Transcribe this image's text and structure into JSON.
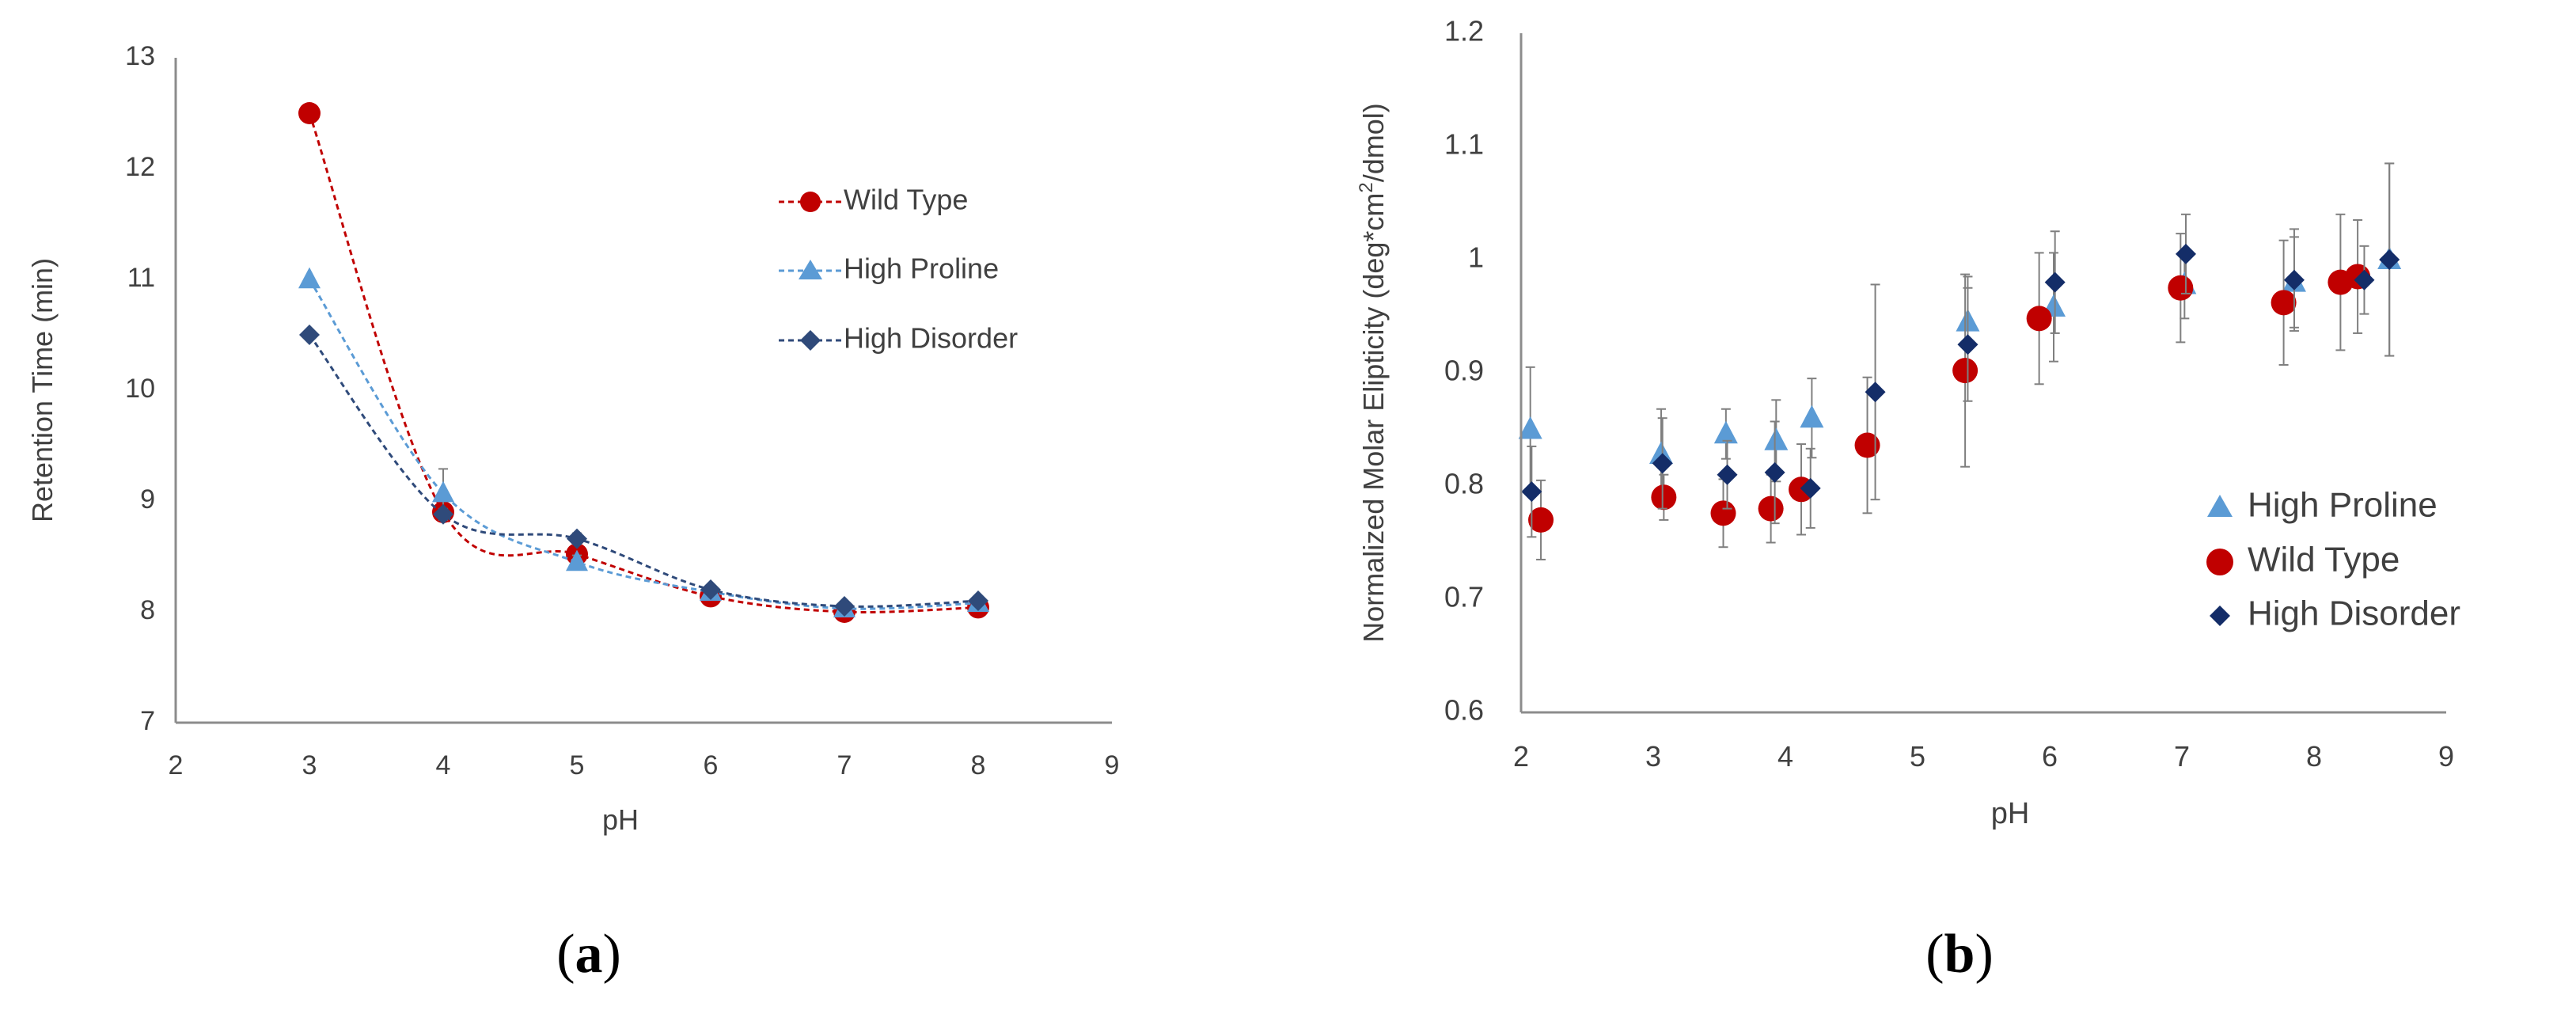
{
  "chart_data": [
    {
      "type": "line",
      "panel_label_open": "(",
      "panel_label": "a",
      "panel_label_close": ")",
      "title": "",
      "xlabel": "pH",
      "ylabel": "Retention Time (min)",
      "xlim": [
        2,
        9
      ],
      "ylim": [
        7,
        13
      ],
      "xticks": [
        2,
        3,
        4,
        5,
        6,
        7,
        8,
        9
      ],
      "yticks": [
        7,
        8,
        9,
        10,
        11,
        12,
        13
      ],
      "grid": false,
      "legend_position": "top-right",
      "series": [
        {
          "name": "Wild Type",
          "color": "#c00000",
          "marker": "circle",
          "x": [
            3,
            4,
            5,
            6,
            7,
            8
          ],
          "y": [
            12.5,
            8.9,
            8.52,
            8.14,
            8.0,
            8.04
          ],
          "err": [
            0,
            0.05,
            0.05,
            0.03,
            0.03,
            0.03
          ]
        },
        {
          "name": "High Proline",
          "color": "#5b9bd5",
          "marker": "triangle",
          "x": [
            3,
            4,
            5,
            6,
            7,
            8
          ],
          "y": [
            11.0,
            9.07,
            8.45,
            8.18,
            8.03,
            8.08
          ],
          "err": [
            0,
            0.22,
            0.06,
            0.04,
            0.03,
            0.03
          ]
        },
        {
          "name": "High Disorder",
          "color": "#2f4a7a",
          "marker": "diamond",
          "x": [
            3,
            4,
            5,
            6,
            7,
            8
          ],
          "y": [
            10.5,
            8.88,
            8.66,
            8.2,
            8.05,
            8.1
          ],
          "err": [
            0,
            0.05,
            0.05,
            0.03,
            0.03,
            0.03
          ]
        }
      ]
    },
    {
      "type": "scatter",
      "panel_label_open": "(",
      "panel_label": "b",
      "panel_label_close": ")",
      "title": "",
      "xlabel": "pH",
      "ylabel_parts": [
        "Normalized Molar Elipticity (deg*cm",
        "2",
        "/dmol)"
      ],
      "xlim": [
        2,
        9
      ],
      "ylim": [
        0.6,
        1.2
      ],
      "xticks": [
        2,
        3,
        4,
        5,
        6,
        7,
        8,
        9
      ],
      "yticks": [
        0.6,
        0.7,
        0.8,
        0.9,
        1.0,
        1.1,
        1.2
      ],
      "grid": false,
      "legend_position": "bottom-right",
      "series": [
        {
          "name": "High Proline",
          "color": "#5b9bd5",
          "marker": "triangle",
          "x": [
            2.07,
            3.06,
            3.55,
            3.93,
            4.2,
            5.38,
            6.03,
            7.02,
            7.85,
            8.57
          ],
          "y": [
            0.85,
            0.828,
            0.846,
            0.84,
            0.86,
            0.945,
            0.958,
            0.978,
            0.98,
            1.0
          ],
          "err": [
            0.055,
            0.04,
            0.022,
            0.036,
            0.035,
            0.04,
            0.048,
            0.03,
            0.04,
            0.085
          ]
        },
        {
          "name": "Wild Type",
          "color": "#c00000",
          "marker": "circle",
          "x": [
            2.15,
            3.08,
            3.53,
            3.89,
            4.12,
            4.62,
            5.36,
            5.92,
            6.99,
            7.77,
            8.2,
            8.33
          ],
          "y": [
            0.77,
            0.79,
            0.776,
            0.78,
            0.797,
            0.836,
            0.902,
            0.948,
            0.975,
            0.962,
            0.98,
            0.985
          ],
          "err": [
            0.035,
            0.02,
            0.03,
            0.03,
            0.04,
            0.06,
            0.085,
            0.058,
            0.048,
            0.055,
            0.06,
            0.05
          ]
        },
        {
          "name": "High Disorder",
          "color": "#142d68",
          "marker": "diamond",
          "x": [
            2.08,
            3.07,
            3.56,
            3.92,
            4.19,
            4.68,
            5.38,
            6.04,
            7.03,
            7.85,
            8.38,
            8.57
          ],
          "y": [
            0.795,
            0.82,
            0.81,
            0.812,
            0.798,
            0.883,
            0.925,
            0.98,
            1.005,
            0.982,
            0.982,
            1.0
          ],
          "err": [
            0.04,
            0.04,
            0.03,
            0.045,
            0.035,
            0.095,
            0.05,
            0.045,
            0.035,
            0.045,
            0.03,
            0.085
          ]
        }
      ]
    }
  ]
}
